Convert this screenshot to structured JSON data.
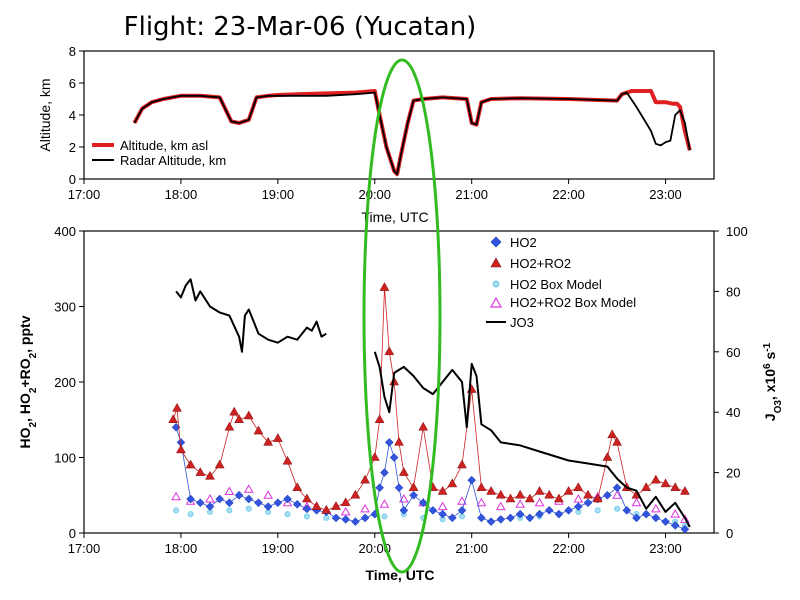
{
  "page": {
    "title": "Flight: 23-Mar-06 (Yucatan)"
  },
  "chart_data": [
    {
      "type": "line",
      "panel": "top",
      "xlabel": "Time, UTC",
      "ylabel": "Altitude, km",
      "x_ticks": [
        "17:00",
        "18:00",
        "19:00",
        "20:00",
        "21:00",
        "22:00",
        "23:00"
      ],
      "xlim": [
        17.0,
        23.5
      ],
      "ylim": [
        0,
        8
      ],
      "y_ticks": [
        "0",
        "2",
        "4",
        "6",
        "8"
      ],
      "legend_position": "bottom-left",
      "series": [
        {
          "name": "Altitude, km asl",
          "color": "#e02020",
          "x": [
            17.52,
            17.6,
            17.7,
            17.82,
            18.0,
            18.2,
            18.4,
            18.52,
            18.6,
            18.7,
            18.78,
            18.9,
            19.0,
            19.2,
            19.5,
            19.8,
            20.0,
            20.05,
            20.12,
            20.2,
            20.23,
            20.27,
            20.34,
            20.4,
            20.5,
            20.7,
            20.95,
            21.0,
            21.05,
            21.1,
            21.2,
            21.5,
            22.0,
            22.5,
            22.55,
            22.65,
            22.8,
            22.85,
            22.9,
            23.0,
            23.08,
            23.12,
            23.15,
            23.2,
            23.25
          ],
          "y": [
            3.5,
            4.4,
            4.8,
            5.0,
            5.2,
            5.2,
            5.1,
            3.6,
            3.5,
            3.7,
            5.1,
            5.2,
            5.25,
            5.3,
            5.35,
            5.4,
            5.5,
            4.0,
            2.0,
            0.5,
            0.3,
            1.5,
            3.5,
            4.9,
            5.0,
            5.1,
            5.0,
            3.5,
            3.4,
            4.8,
            5.0,
            5.05,
            5.0,
            4.9,
            5.3,
            5.5,
            5.5,
            5.5,
            4.8,
            4.8,
            4.7,
            4.7,
            4.5,
            3.0,
            1.8
          ]
        },
        {
          "name": "Radar Altitude, km",
          "color": "#000000",
          "x": [
            17.52,
            17.6,
            17.7,
            17.82,
            18.0,
            18.2,
            18.4,
            18.52,
            18.6,
            18.7,
            18.78,
            18.9,
            19.0,
            19.2,
            19.5,
            19.8,
            20.0,
            20.05,
            20.12,
            20.2,
            20.23,
            20.27,
            20.34,
            20.4,
            20.5,
            20.7,
            20.95,
            21.0,
            21.05,
            21.1,
            21.2,
            21.5,
            22.0,
            22.5,
            22.55,
            22.6,
            22.7,
            22.8,
            22.85,
            22.9,
            22.95,
            23.0,
            23.05,
            23.1,
            23.15,
            23.2,
            23.25
          ],
          "y": [
            3.5,
            4.4,
            4.8,
            5.0,
            5.2,
            5.2,
            5.1,
            3.6,
            3.5,
            3.7,
            5.1,
            5.2,
            5.2,
            5.2,
            5.2,
            5.3,
            5.4,
            4.0,
            2.0,
            0.5,
            0.3,
            1.5,
            3.5,
            4.9,
            5.0,
            5.1,
            5.0,
            3.5,
            3.4,
            4.8,
            5.0,
            5.05,
            5.0,
            4.9,
            5.3,
            5.4,
            4.5,
            3.5,
            3.0,
            2.2,
            2.1,
            2.3,
            2.4,
            4.0,
            4.3,
            3.5,
            1.8
          ]
        }
      ]
    },
    {
      "type": "scatter",
      "panel": "bottom",
      "xlabel": "Time, UTC",
      "ylabel": "HO2, HO2+RO2, pptv",
      "ylabel_right": "JO3, x10^6 s^-1",
      "x_ticks": [
        "17:00",
        "18:00",
        "19:00",
        "20:00",
        "21:00",
        "22:00",
        "23:00"
      ],
      "xlim": [
        17.0,
        23.5
      ],
      "ylim": [
        0,
        400
      ],
      "y_ticks": [
        "0",
        "100",
        "200",
        "300",
        "400"
      ],
      "ylim_right": [
        0,
        100
      ],
      "y_ticks_right": [
        "0",
        "20",
        "40",
        "60",
        "80",
        "100"
      ],
      "legend_position": "top-right",
      "annotation": "green ellipse around 20:00–20:25 UTC",
      "series": [
        {
          "name": "HO2",
          "color": "#3355dd",
          "marker": "diamond",
          "x": [
            17.95,
            18.0,
            18.1,
            18.2,
            18.3,
            18.4,
            18.5,
            18.6,
            18.7,
            18.8,
            18.9,
            19.0,
            19.1,
            19.2,
            19.3,
            19.4,
            19.5,
            19.6,
            19.7,
            19.8,
            19.9,
            20.0,
            20.05,
            20.1,
            20.15,
            20.2,
            20.25,
            20.3,
            20.4,
            20.5,
            20.6,
            20.7,
            20.8,
            20.9,
            21.0,
            21.1,
            21.2,
            21.3,
            21.4,
            21.5,
            21.6,
            21.7,
            21.8,
            21.9,
            22.0,
            22.1,
            22.2,
            22.3,
            22.4,
            22.5,
            22.6,
            22.7,
            22.8,
            22.9,
            23.0,
            23.1,
            23.2
          ],
          "y": [
            140,
            120,
            45,
            40,
            35,
            45,
            40,
            50,
            45,
            40,
            35,
            40,
            45,
            38,
            32,
            30,
            28,
            20,
            18,
            15,
            20,
            25,
            60,
            80,
            120,
            100,
            60,
            30,
            50,
            40,
            30,
            25,
            20,
            30,
            70,
            20,
            15,
            18,
            20,
            25,
            20,
            25,
            30,
            25,
            30,
            35,
            40,
            45,
            50,
            60,
            30,
            20,
            25,
            20,
            15,
            10,
            5
          ]
        },
        {
          "name": "HO2+RO2",
          "color": "#cc2222",
          "marker": "triangle",
          "x": [
            17.92,
            17.96,
            18.0,
            18.1,
            18.2,
            18.3,
            18.4,
            18.5,
            18.55,
            18.6,
            18.7,
            18.8,
            18.9,
            19.0,
            19.1,
            19.2,
            19.3,
            19.4,
            19.5,
            19.6,
            19.7,
            19.8,
            19.9,
            20.0,
            20.05,
            20.1,
            20.15,
            20.2,
            20.25,
            20.3,
            20.4,
            20.5,
            20.6,
            20.7,
            20.8,
            20.9,
            21.0,
            21.1,
            21.2,
            21.3,
            21.4,
            21.5,
            21.6,
            21.7,
            21.8,
            21.9,
            22.0,
            22.1,
            22.2,
            22.3,
            22.4,
            22.45,
            22.5,
            22.6,
            22.7,
            22.8,
            22.9,
            23.0,
            23.1,
            23.2
          ],
          "y": [
            150,
            165,
            110,
            90,
            80,
            75,
            90,
            140,
            160,
            150,
            155,
            135,
            120,
            125,
            95,
            60,
            45,
            35,
            30,
            35,
            40,
            50,
            70,
            100,
            150,
            325,
            240,
            200,
            120,
            80,
            60,
            140,
            60,
            55,
            65,
            90,
            190,
            60,
            55,
            50,
            45,
            50,
            45,
            55,
            50,
            45,
            55,
            60,
            50,
            45,
            100,
            130,
            120,
            60,
            50,
            60,
            70,
            65,
            60,
            55
          ]
        },
        {
          "name": "HO2 Box Model",
          "color": "#66ccee",
          "marker": "circle",
          "x": [
            17.95,
            18.1,
            18.3,
            18.5,
            18.7,
            18.9,
            19.1,
            19.3,
            19.5,
            19.7,
            19.9,
            20.1,
            20.3,
            20.5,
            20.7,
            20.9,
            21.1,
            21.3,
            21.5,
            21.7,
            21.9,
            22.1,
            22.3,
            22.5,
            22.7,
            22.9,
            23.1,
            23.2
          ],
          "y": [
            30,
            25,
            28,
            30,
            32,
            28,
            25,
            22,
            20,
            18,
            20,
            22,
            25,
            20,
            18,
            22,
            20,
            18,
            20,
            22,
            25,
            28,
            30,
            32,
            25,
            20,
            15,
            10
          ]
        },
        {
          "name": "HO2+RO2 Box Model",
          "color": "#dd33dd",
          "marker": "triangle-open",
          "x": [
            17.95,
            18.1,
            18.3,
            18.5,
            18.7,
            18.9,
            19.1,
            19.3,
            19.5,
            19.7,
            19.9,
            20.1,
            20.3,
            20.5,
            20.7,
            20.9,
            21.1,
            21.3,
            21.5,
            21.7,
            21.9,
            22.1,
            22.3,
            22.5,
            22.7,
            22.9,
            23.1,
            23.2
          ],
          "y": [
            48,
            42,
            45,
            55,
            58,
            50,
            40,
            35,
            30,
            28,
            32,
            38,
            45,
            40,
            35,
            42,
            40,
            35,
            38,
            40,
            42,
            45,
            48,
            50,
            40,
            32,
            25,
            18
          ]
        },
        {
          "name": "JO3",
          "color": "#000000",
          "marker": "line",
          "axis": "right",
          "x": [
            17.95,
            18.0,
            18.05,
            18.1,
            18.15,
            18.2,
            18.3,
            18.4,
            18.5,
            18.6,
            18.63,
            18.66,
            18.7,
            18.8,
            18.9,
            19.0,
            19.1,
            19.2,
            19.3,
            19.35,
            19.4,
            19.45,
            19.5,
            20.0,
            20.05,
            20.1,
            20.15,
            20.2,
            20.3,
            20.4,
            20.5,
            20.6,
            20.7,
            20.8,
            20.9,
            20.95,
            21.0,
            21.05,
            21.1,
            21.2,
            21.3,
            21.5,
            21.7,
            21.9,
            22.0,
            22.2,
            22.4,
            22.5,
            22.6,
            22.7,
            22.8,
            22.9,
            23.0,
            23.1,
            23.2,
            23.25
          ],
          "y": [
            80,
            78,
            82,
            84,
            77,
            80,
            75,
            73,
            72,
            65,
            60,
            72,
            74,
            66,
            64,
            63,
            65,
            64,
            68,
            67,
            70,
            65,
            66,
            60,
            55,
            45,
            40,
            53,
            55,
            52,
            48,
            46,
            50,
            54,
            50,
            35,
            56,
            52,
            36,
            34,
            30,
            29,
            27,
            25,
            24,
            23,
            22,
            18,
            15,
            14,
            8,
            12,
            7,
            10,
            5,
            2
          ]
        }
      ]
    }
  ]
}
